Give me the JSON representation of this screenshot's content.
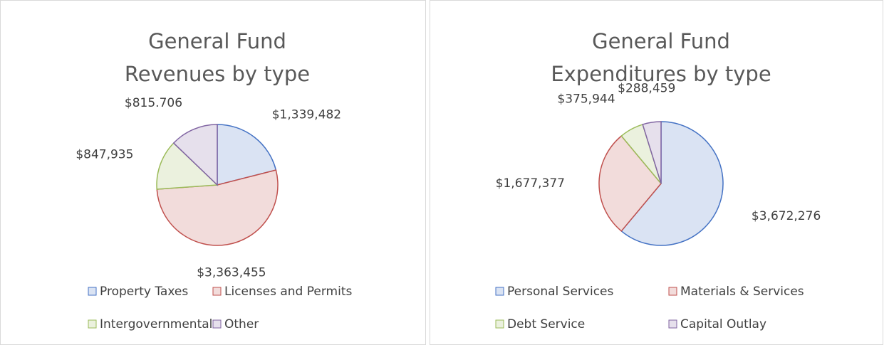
{
  "chart_data": [
    {
      "type": "pie",
      "title": [
        "General Fund",
        "Revenues by type"
      ],
      "categories": [
        "Property Taxes",
        "Licenses and Permits",
        "Intergovernmental",
        "Other"
      ],
      "values": [
        1339482,
        3363455,
        847935,
        815706
      ],
      "value_labels": [
        "$1,339,482",
        "$3,363,455",
        "$847,935",
        "$815.706"
      ],
      "colors": [
        "#4472c4",
        "#c0504d",
        "#9bbb59",
        "#8064a2"
      ]
    },
    {
      "type": "pie",
      "title": [
        "General Fund",
        "Expenditures by type"
      ],
      "categories": [
        "Personal Services",
        "Materials & Services",
        "Debt Service",
        "Capital Outlay"
      ],
      "values": [
        3672276,
        1677377,
        375944,
        288459
      ],
      "value_labels": [
        "$3,672,276",
        "$1,677,377",
        "$375,944",
        "$288,459"
      ],
      "colors": [
        "#4472c4",
        "#c0504d",
        "#9bbb59",
        "#8064a2"
      ]
    }
  ]
}
